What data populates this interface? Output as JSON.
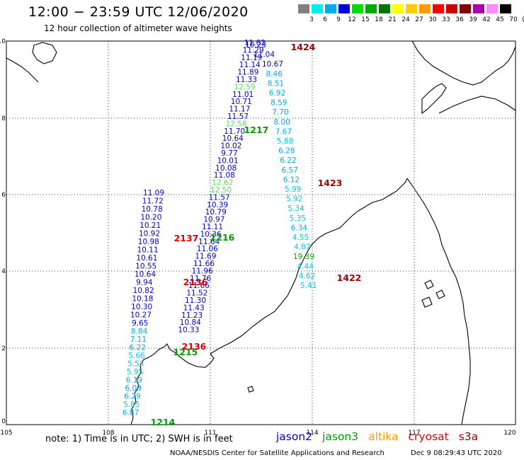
{
  "header": {
    "title": "12:00 − 23:59 UTC 12/06/2020",
    "subtitle": "12 hour collection of altimeter wave heights"
  },
  "colors": {
    "jason2": "#0000cc",
    "jason3": "#009900",
    "altika": "#ff9900",
    "cryosat": "#dd0000",
    "s3a": "#990000",
    "land": "#000000",
    "grid": "#000000"
  },
  "color_scale": {
    "labels": [
      "3",
      "6",
      "9",
      "12",
      "15",
      "18",
      "21",
      "24",
      "27",
      "30",
      "33",
      "36",
      "39",
      "42",
      "45",
      "70",
      "(ft)"
    ],
    "colors": [
      "#808080",
      "#00eeee",
      "#00aaee",
      "#0000dd",
      "#00dd00",
      "#00aa00",
      "#007700",
      "#ffff00",
      "#ffcc00",
      "#ff9900",
      "#ff0000",
      "#cc0000",
      "#880000",
      "#aa00aa",
      "#ff88ff",
      "#000000"
    ]
  },
  "axes": {
    "x_ticks": [
      "105",
      "108",
      "111",
      "114",
      "117",
      "120"
    ],
    "y_ticks": [
      "0",
      "2",
      "4",
      "6",
      "8",
      "10"
    ]
  },
  "tracks": [
    {
      "id": "west",
      "values": [
        "11.09",
        "11.72",
        "10.78",
        "10.20",
        "10.21",
        "10.92",
        "10.98",
        "10.11",
        "10.61",
        "10.55",
        "10.64",
        "9.94",
        "10.82",
        "10.18",
        "10.30",
        "10.27",
        "9.65",
        "8.84",
        "7.11",
        "6.22",
        "5.66",
        "5.53",
        "5.95",
        "6.19",
        "6.09",
        "6.29",
        "5.85",
        "6.87"
      ]
    },
    {
      "id": "center",
      "values": [
        "11.02",
        "11.29",
        "11.19",
        "11.14",
        "11.89",
        "11.33",
        "12.59",
        "11.01",
        "10.71",
        "11.17",
        "11.57",
        "12.58",
        "11.70",
        "10.64",
        "10.02",
        "9.77",
        "10.01",
        "10.08",
        "11.08",
        "12.62",
        "12.50",
        "11.57",
        "10.39",
        "10.79",
        "10.97",
        "11.11",
        "10.36",
        "11.64",
        "11.06",
        "11.69",
        "11.66",
        "11.96",
        "11.76",
        "11.66",
        "11.52",
        "11.30",
        "11.43",
        "11.23",
        "10.84",
        "10.33"
      ]
    },
    {
      "id": "east",
      "values": [
        "10.23",
        "11.04",
        "10.67",
        "8.46",
        "8.51",
        "6.92",
        "8.59",
        "7.70",
        "8.00",
        "7.67",
        "5.88",
        "6.28",
        "6.22",
        "6.57",
        "6.12",
        "5.99",
        "5.92",
        "5.34",
        "5.35",
        "6.34",
        "4.55",
        "4.87",
        "19.39",
        "4.44",
        "4.62",
        "5.41"
      ]
    }
  ],
  "time_labels": [
    {
      "text": "1424",
      "sat": "s3a"
    },
    {
      "text": "1217",
      "sat": "jason3"
    },
    {
      "text": "1423",
      "sat": "s3a"
    },
    {
      "text": "2137",
      "sat": "cryosat"
    },
    {
      "text": "1216",
      "sat": "jason3"
    },
    {
      "text": "2136",
      "sat": "cryosat"
    },
    {
      "text": "1422",
      "sat": "s3a"
    },
    {
      "text": "2136",
      "sat": "cryosat"
    },
    {
      "text": "1215",
      "sat": "jason3"
    },
    {
      "text": "1214",
      "sat": "jason3"
    }
  ],
  "footer": {
    "note": "note:  1) Time is in UTC;  2) SWH is in feet",
    "satellites": [
      {
        "name": "jason2",
        "color": "#0000cc"
      },
      {
        "name": "jason3",
        "color": "#009900"
      },
      {
        "name": "altika",
        "color": "#ff9900"
      },
      {
        "name": "cryosat",
        "color": "#dd0000"
      },
      {
        "name": "s3a",
        "color": "#990000"
      }
    ],
    "credit": "NOAA/NESDIS Center for Satellite Applications and Research",
    "generated": "Dec  9 08:29:43 UTC 2020"
  }
}
